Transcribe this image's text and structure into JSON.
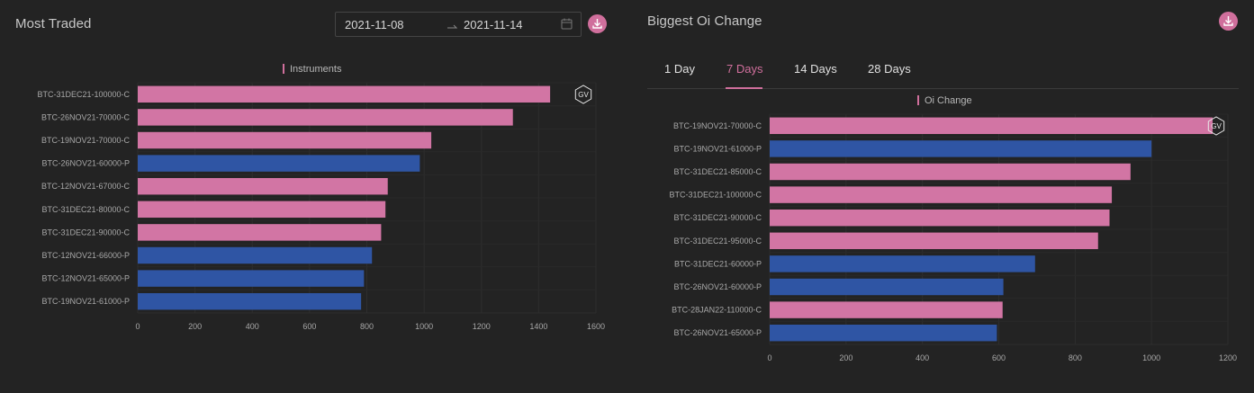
{
  "colors": {
    "call": "#d275a4",
    "put": "#2f55a4",
    "accent": "#d06f9c"
  },
  "most_traded": {
    "title": "Most Traded",
    "date_start": "2021-11-08",
    "date_end": "2021-11-14",
    "download_icon": "download-icon"
  },
  "biggest_oi": {
    "title": "Biggest Oi Change",
    "download_icon": "download-icon",
    "tabs": [
      "1 Day",
      "7 Days",
      "14 Days",
      "28 Days"
    ],
    "active_tab": 1
  },
  "chart_data": [
    {
      "type": "bar",
      "orientation": "horizontal",
      "legend": "Instruments",
      "legend_position": "top-center",
      "watermark": "GV",
      "grid": true,
      "categories": [
        "BTC-31DEC21-100000-C",
        "BTC-26NOV21-70000-C",
        "BTC-19NOV21-70000-C",
        "BTC-26NOV21-60000-P",
        "BTC-12NOV21-67000-C",
        "BTC-31DEC21-80000-C",
        "BTC-31DEC21-90000-C",
        "BTC-12NOV21-66000-P",
        "BTC-12NOV21-65000-P",
        "BTC-19NOV21-61000-P"
      ],
      "values": [
        1440,
        1310,
        1025,
        985,
        873,
        865,
        850,
        818,
        790,
        780
      ],
      "xlim": [
        0,
        1600
      ],
      "xticks": [
        0,
        200,
        400,
        600,
        800,
        1000,
        1200,
        1400,
        1600
      ]
    },
    {
      "type": "bar",
      "orientation": "horizontal",
      "legend": "Oi Change",
      "legend_position": "top-center",
      "watermark": "GV",
      "grid": true,
      "categories": [
        "BTC-19NOV21-70000-C",
        "BTC-19NOV21-61000-P",
        "BTC-31DEC21-85000-C",
        "BTC-31DEC21-100000-C",
        "BTC-31DEC21-90000-C",
        "BTC-31DEC21-95000-C",
        "BTC-31DEC21-60000-P",
        "BTC-26NOV21-60000-P",
        "BTC-28JAN22-110000-C",
        "BTC-26NOV21-65000-P"
      ],
      "values": [
        1160,
        1000,
        945,
        896,
        890,
        860,
        695,
        612,
        610,
        595
      ],
      "xlim": [
        0,
        1200
      ],
      "xticks": [
        0,
        200,
        400,
        600,
        800,
        1000,
        1200
      ]
    }
  ]
}
